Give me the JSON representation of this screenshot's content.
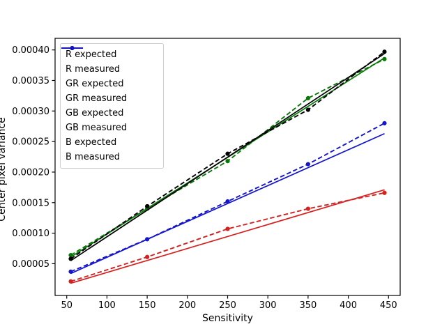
{
  "figure": {
    "background": "#ffffff",
    "axis_color": "#000000"
  },
  "chart_data": {
    "type": "line",
    "title": "",
    "xlabel": "Sensitivity",
    "ylabel": "Center pixel variance",
    "grid": false,
    "legend_position": "upper left",
    "xlim": [
      35.5,
      464.5
    ],
    "ylim": [
      -2e-06,
      0.000419
    ],
    "xticks": [
      50,
      100,
      150,
      200,
      250,
      300,
      350,
      400,
      450
    ],
    "xtick_labels": [
      "50",
      "100",
      "150",
      "200",
      "250",
      "300",
      "350",
      "400",
      "450"
    ],
    "yticks": [
      5e-05,
      0.0001,
      0.00015,
      0.0002,
      0.00025,
      0.0003,
      0.00035,
      0.0004
    ],
    "ytick_labels": [
      "0.00005",
      "0.00010",
      "0.00015",
      "0.00020",
      "0.00025",
      "0.00030",
      "0.00035",
      "0.00040"
    ],
    "series": [
      {
        "name": "R expected",
        "color": "#d62020",
        "style": "solid",
        "marker": false,
        "x": [
          55,
          445
        ],
        "y": [
          1.8e-05,
          0.000171
        ]
      },
      {
        "name": "R measured",
        "color": "#d62020",
        "style": "dashed",
        "marker": true,
        "x": [
          55,
          150,
          250,
          350,
          445
        ],
        "y": [
          2.1e-05,
          6.1e-05,
          0.000107,
          0.00014,
          0.000166
        ]
      },
      {
        "name": "GR expected",
        "color": "#067806",
        "style": "solid",
        "marker": false,
        "x": [
          55,
          445
        ],
        "y": [
          6.1e-05,
          0.000387
        ]
      },
      {
        "name": "GR measured",
        "color": "#067806",
        "style": "dashed",
        "marker": true,
        "x": [
          55,
          150,
          250,
          350,
          445
        ],
        "y": [
          6.4e-05,
          0.00014,
          0.000218,
          0.000321,
          0.000385
        ]
      },
      {
        "name": "GB expected",
        "color": "#000000",
        "style": "solid",
        "marker": false,
        "x": [
          55,
          445
        ],
        "y": [
          5.5e-05,
          0.000394
        ]
      },
      {
        "name": "GB measured",
        "color": "#000000",
        "style": "dashed",
        "marker": true,
        "x": [
          55,
          150,
          250,
          350,
          445
        ],
        "y": [
          5.8e-05,
          0.000144,
          0.00023,
          0.000302,
          0.000397
        ]
      },
      {
        "name": "B expected",
        "color": "#1414cd",
        "style": "solid",
        "marker": false,
        "x": [
          55,
          445
        ],
        "y": [
          3.4e-05,
          0.000263
        ]
      },
      {
        "name": "B measured",
        "color": "#1414cd",
        "style": "dashed",
        "marker": true,
        "x": [
          55,
          150,
          250,
          350,
          445
        ],
        "y": [
          3.7e-05,
          9e-05,
          0.000152,
          0.000213,
          0.00028
        ]
      }
    ]
  }
}
